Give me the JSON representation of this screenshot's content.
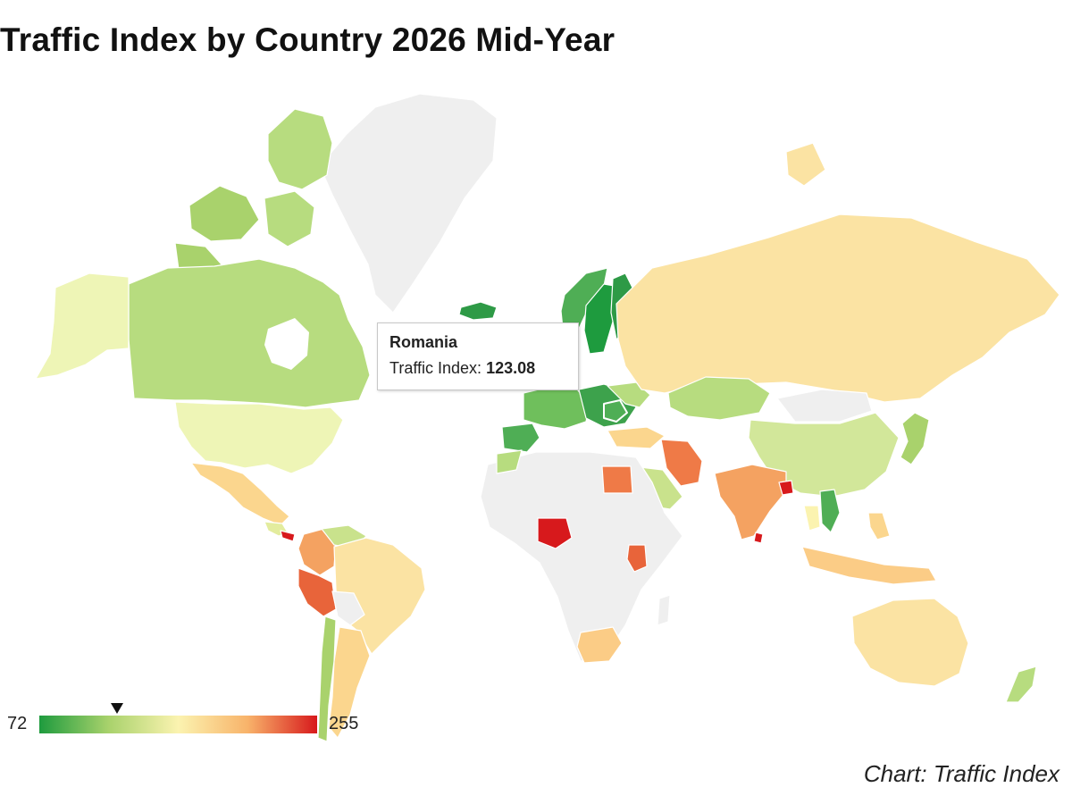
{
  "title": "Traffic Index by Country 2026 Mid-Year",
  "credit": "Chart: Traffic Index",
  "tooltip": {
    "country": "Romania",
    "label": "Traffic Index:",
    "value": "123.08"
  },
  "legend": {
    "min": "72",
    "max": "255",
    "marker_value": 123.08,
    "gradient": [
      "#1e9b3e",
      "#a9d26c",
      "#fbf3b0",
      "#f8b36a",
      "#d7191c"
    ]
  },
  "colors": {
    "no_data": "#efefef",
    "border": "#ffffff"
  },
  "chart_data": {
    "type": "choropleth",
    "metric": "Traffic Index",
    "scale_min": 72,
    "scale_max": 255,
    "highlighted": {
      "country": "Romania",
      "value": 123.08
    },
    "countries": [
      {
        "name": "Canada",
        "band": "light-green"
      },
      {
        "name": "United States",
        "band": "pale-yellow"
      },
      {
        "name": "Alaska (US)",
        "band": "pale-yellow"
      },
      {
        "name": "Mexico",
        "band": "light-orange"
      },
      {
        "name": "Colombia",
        "band": "orange"
      },
      {
        "name": "Peru",
        "band": "red-orange"
      },
      {
        "name": "Brazil",
        "band": "light-yellow"
      },
      {
        "name": "Chile",
        "band": "light-green"
      },
      {
        "name": "Argentina",
        "band": "light-orange"
      },
      {
        "name": "Costa Rica",
        "band": "red"
      },
      {
        "name": "Iceland",
        "band": "green"
      },
      {
        "name": "Sweden",
        "band": "green"
      },
      {
        "name": "Finland",
        "band": "green"
      },
      {
        "name": "Norway",
        "band": "green"
      },
      {
        "name": "Spain",
        "band": "green"
      },
      {
        "name": "Turkey",
        "band": "light-orange"
      },
      {
        "name": "Iran",
        "band": "red-orange"
      },
      {
        "name": "Egypt",
        "band": "red-orange"
      },
      {
        "name": "Nigeria",
        "band": "red"
      },
      {
        "name": "Kenya",
        "band": "red-orange"
      },
      {
        "name": "South Africa",
        "band": "light-orange"
      },
      {
        "name": "Saudi Arabia",
        "band": "light-green"
      },
      {
        "name": "India",
        "band": "orange"
      },
      {
        "name": "Bangladesh",
        "band": "red"
      },
      {
        "name": "Sri Lanka",
        "band": "red"
      },
      {
        "name": "Kazakhstan",
        "band": "light-green"
      },
      {
        "name": "China",
        "band": "light-green"
      },
      {
        "name": "Russia",
        "band": "light-yellow"
      },
      {
        "name": "Japan",
        "band": "light-green"
      },
      {
        "name": "Vietnam",
        "band": "green"
      },
      {
        "name": "Indonesia",
        "band": "light-orange"
      },
      {
        "name": "Australia",
        "band": "light-yellow"
      },
      {
        "name": "New Zealand",
        "band": "light-green"
      },
      {
        "name": "Greenland",
        "band": "no-data"
      },
      {
        "name": "Romania",
        "band": "green",
        "value": 123.08
      }
    ]
  }
}
